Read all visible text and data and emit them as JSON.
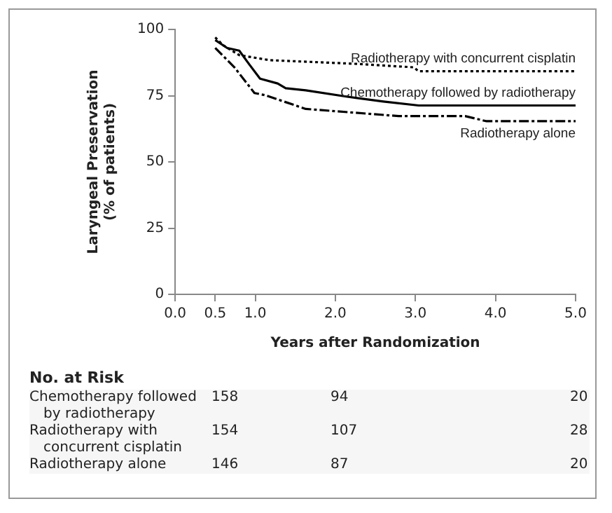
{
  "chart_data": {
    "type": "line",
    "xlabel": "Years after Randomization",
    "ylabel": "Laryngeal Preservation\n(% of patients)",
    "xlim": [
      0,
      5
    ],
    "ylim": [
      0,
      100
    ],
    "xticks": [
      {
        "value": 0,
        "label": "0.0"
      },
      {
        "value": 0.5,
        "label": "0.5"
      },
      {
        "value": 1,
        "label": "1.0"
      },
      {
        "value": 2,
        "label": "2.0"
      },
      {
        "value": 3,
        "label": "3.0"
      },
      {
        "value": 4,
        "label": "4.0"
      },
      {
        "value": 5,
        "label": "5.0"
      }
    ],
    "yticks": [
      0,
      25,
      50,
      75,
      100
    ],
    "grid": false,
    "legend": false,
    "marker": "none",
    "series": [
      {
        "name": "Radiotherapy with concurrent cisplatin",
        "color": "#000000",
        "line_style": "dotted",
        "x": [
          0.5,
          0.6,
          0.8,
          1.18,
          2.27,
          2.98,
          3.04,
          5.0
        ],
        "values": [
          97,
          94,
          90.3,
          88.4,
          87,
          85.7,
          84.2,
          84.2
        ]
      },
      {
        "name": "Chemotherapy followed by radiotherapy",
        "color": "#000000",
        "line_style": "solid",
        "x": [
          0.5,
          0.65,
          0.8,
          0.93,
          1.06,
          1.28,
          1.38,
          1.63,
          2.15,
          2.6,
          3.04,
          5.0
        ],
        "values": [
          96,
          93,
          92,
          86.6,
          81.4,
          79.6,
          77.8,
          77,
          74.6,
          72.8,
          71.3,
          71.3
        ]
      },
      {
        "name": "Radiotherapy alone",
        "color": "#000000",
        "line_style": "dashdot",
        "x": [
          0.5,
          0.74,
          0.99,
          1.12,
          1.63,
          2.4,
          2.79,
          3.62,
          3.88,
          5.0
        ],
        "values": [
          93,
          85.7,
          76,
          75.2,
          70,
          68.2,
          67.3,
          67.3,
          65.4,
          65.4
        ]
      }
    ],
    "annotations": [
      "No. at Risk",
      "Chemotherapy followed\nby radiotherapy",
      "158",
      "94",
      "20",
      "Radiotherapy with\nconcurrent cisplatin",
      "154",
      "107",
      "28",
      "Radiotherapy alone",
      "146",
      "87",
      "20"
    ]
  }
}
